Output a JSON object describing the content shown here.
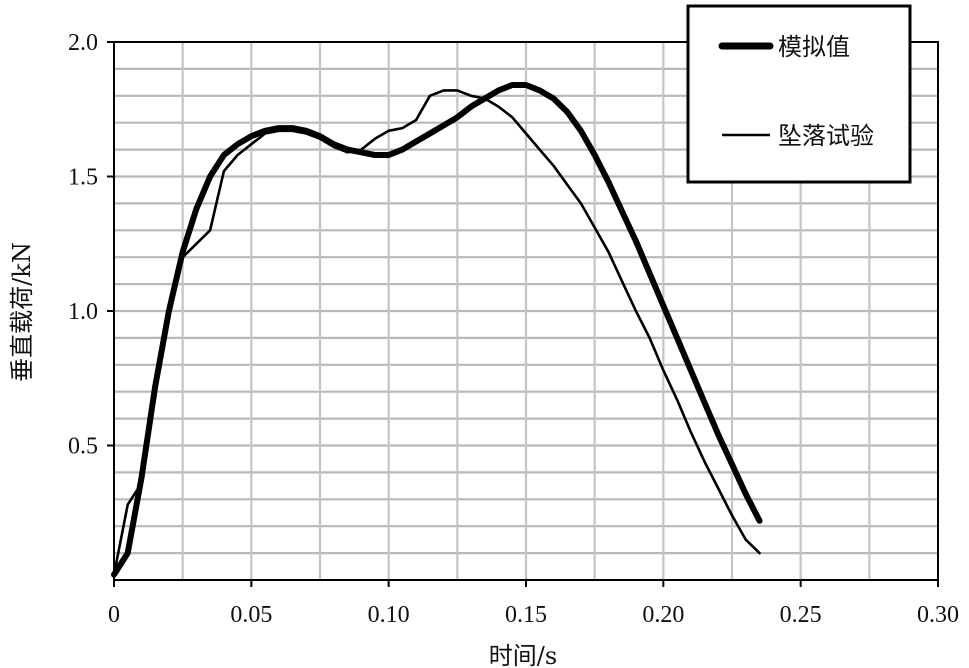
{
  "chart_data": {
    "type": "line",
    "xlabel": "时间/s",
    "ylabel": "垂直载荷/kN",
    "xlim": [
      0,
      0.3
    ],
    "ylim": [
      0,
      2.0
    ],
    "x_ticks": [
      "0",
      "0.05",
      "0.10",
      "0.15",
      "0.20",
      "0.25",
      "0.30"
    ],
    "y_ticks": [
      "0.5",
      "1.0",
      "1.5",
      "2.0"
    ],
    "grid": true,
    "legend_position": "top-right",
    "series": [
      {
        "name": "模拟值",
        "color": "#000000",
        "style": "thick",
        "x": [
          0.0,
          0.005,
          0.01,
          0.015,
          0.02,
          0.025,
          0.03,
          0.035,
          0.04,
          0.045,
          0.05,
          0.055,
          0.06,
          0.065,
          0.07,
          0.075,
          0.08,
          0.085,
          0.09,
          0.095,
          0.1,
          0.105,
          0.11,
          0.115,
          0.12,
          0.125,
          0.13,
          0.135,
          0.14,
          0.145,
          0.15,
          0.155,
          0.16,
          0.165,
          0.17,
          0.175,
          0.18,
          0.185,
          0.19,
          0.195,
          0.2,
          0.205,
          0.21,
          0.215,
          0.22,
          0.225,
          0.23,
          0.235
        ],
        "y": [
          0.02,
          0.1,
          0.38,
          0.72,
          1.0,
          1.22,
          1.38,
          1.5,
          1.58,
          1.62,
          1.65,
          1.67,
          1.68,
          1.68,
          1.67,
          1.65,
          1.62,
          1.6,
          1.59,
          1.58,
          1.58,
          1.6,
          1.63,
          1.66,
          1.69,
          1.72,
          1.76,
          1.79,
          1.82,
          1.84,
          1.84,
          1.82,
          1.79,
          1.74,
          1.67,
          1.58,
          1.48,
          1.37,
          1.26,
          1.14,
          1.02,
          0.9,
          0.78,
          0.66,
          0.54,
          0.43,
          0.32,
          0.22
        ]
      },
      {
        "name": "坠落试验",
        "color": "#000000",
        "style": "thin",
        "x": [
          0.0,
          0.005,
          0.01,
          0.015,
          0.02,
          0.025,
          0.03,
          0.035,
          0.04,
          0.045,
          0.05,
          0.055,
          0.06,
          0.065,
          0.07,
          0.075,
          0.08,
          0.085,
          0.09,
          0.095,
          0.1,
          0.105,
          0.11,
          0.115,
          0.12,
          0.125,
          0.13,
          0.135,
          0.14,
          0.145,
          0.15,
          0.155,
          0.16,
          0.165,
          0.17,
          0.175,
          0.18,
          0.185,
          0.19,
          0.195,
          0.2,
          0.205,
          0.21,
          0.215,
          0.22,
          0.225,
          0.23,
          0.235
        ],
        "y": [
          0.02,
          0.28,
          0.36,
          0.74,
          1.02,
          1.2,
          1.25,
          1.3,
          1.52,
          1.58,
          1.62,
          1.66,
          1.67,
          1.67,
          1.66,
          1.64,
          1.61,
          1.59,
          1.6,
          1.64,
          1.67,
          1.68,
          1.71,
          1.8,
          1.82,
          1.82,
          1.8,
          1.79,
          1.76,
          1.72,
          1.66,
          1.6,
          1.54,
          1.47,
          1.4,
          1.31,
          1.22,
          1.11,
          1.0,
          0.9,
          0.78,
          0.67,
          0.55,
          0.44,
          0.34,
          0.24,
          0.15,
          0.1
        ]
      }
    ]
  }
}
